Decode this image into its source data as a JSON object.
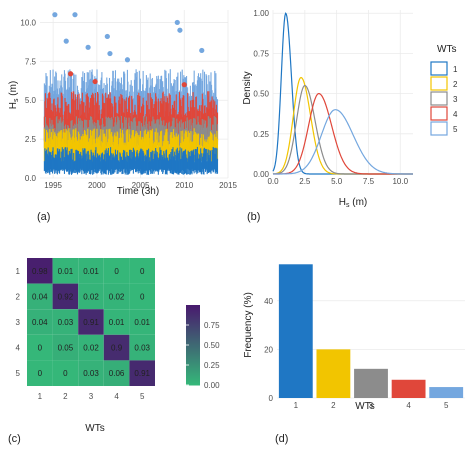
{
  "panel_labels": [
    "(a)",
    "(b)",
    "(c)",
    "(d)"
  ],
  "colors": {
    "1": "#1f77c4",
    "2": "#f2c500",
    "3": "#8c8c8c",
    "4": "#e0473a",
    "5": "#74a7df",
    "grid": "#ebebeb"
  },
  "chart_data": [
    {
      "type": "scatter",
      "panel": "(a)",
      "xlabel": "Time (3h)",
      "ylabel_main": "H",
      "ylabel_sub": "s",
      "ylabel_unit": " (m)",
      "xlim": [
        1993.5,
        2015
      ],
      "ylim": [
        0,
        10.8
      ],
      "x_ticks": [
        1995,
        2000,
        2005,
        2010,
        2015
      ],
      "y_ticks": [
        0.0,
        2.5,
        5.0,
        7.5,
        10.0
      ],
      "y_tick_labels": [
        "0.0",
        "2.5",
        "5.0",
        "7.5",
        "10.0"
      ],
      "series": [
        {
          "wt": "5",
          "band": [
            3.2,
            7.0
          ],
          "outliers": [
            [
              1995.2,
              10.5
            ],
            [
              1997.5,
              10.5
            ],
            [
              2001.2,
              9.1
            ],
            [
              2001.5,
              8.0
            ],
            [
              2009.2,
              10.0
            ],
            [
              2009.5,
              9.5
            ],
            [
              2012.0,
              8.2
            ],
            [
              1999.0,
              8.4
            ],
            [
              2003.5,
              7.6
            ],
            [
              1996.5,
              8.8
            ]
          ]
        },
        {
          "wt": "4",
          "band": [
            2.2,
            5.6
          ],
          "outliers": [
            [
              1997.0,
              6.7
            ],
            [
              1999.8,
              6.2
            ],
            [
              2010.0,
              6.0
            ]
          ]
        },
        {
          "wt": "3",
          "band": [
            1.8,
            4.0
          ],
          "outliers": []
        },
        {
          "wt": "2",
          "band": [
            0.9,
            3.2
          ],
          "outliers": []
        },
        {
          "wt": "1",
          "band": [
            0.2,
            2.0
          ],
          "outliers": []
        }
      ]
    },
    {
      "type": "line",
      "panel": "(b)",
      "xlabel_main": "H",
      "xlabel_sub": "s",
      "xlabel_unit": " (m)",
      "ylabel": "Density",
      "xlim": [
        0,
        11
      ],
      "ylim": [
        0,
        1.02
      ],
      "x_ticks": [
        0.0,
        2.5,
        5.0,
        7.5,
        10.0
      ],
      "x_tick_labels": [
        "0.0",
        "2.5",
        "5.0",
        "7.5",
        "10.0"
      ],
      "y_ticks": [
        0.0,
        0.25,
        0.5,
        0.75,
        1.0
      ],
      "y_tick_labels": [
        "0.00",
        "0.25",
        "0.50",
        "0.75",
        "1.00"
      ],
      "legend_title": "WTs",
      "legend_position": "right",
      "series": [
        {
          "name": "1",
          "peak_x": 1.0,
          "peak_y": 1.0,
          "sd_left": 0.35,
          "sd_right": 0.45
        },
        {
          "name": "2",
          "peak_x": 2.2,
          "peak_y": 0.6,
          "sd_left": 0.6,
          "sd_right": 0.75
        },
        {
          "name": "3",
          "peak_x": 2.5,
          "peak_y": 0.55,
          "sd_left": 0.65,
          "sd_right": 0.8
        },
        {
          "name": "4",
          "peak_x": 3.6,
          "peak_y": 0.5,
          "sd_left": 0.8,
          "sd_right": 1.0
        },
        {
          "name": "5",
          "peak_x": 4.9,
          "peak_y": 0.4,
          "sd_left": 1.1,
          "sd_right": 1.4
        }
      ]
    },
    {
      "type": "heatmap",
      "panel": "(c)",
      "xlabel": "WTs",
      "x_categories": [
        "1",
        "2",
        "3",
        "4",
        "5"
      ],
      "y_categories": [
        "1",
        "2",
        "3",
        "4",
        "5"
      ],
      "values": [
        [
          0.98,
          0.01,
          0.01,
          0,
          0
        ],
        [
          0.04,
          0.92,
          0.02,
          0.02,
          0
        ],
        [
          0.04,
          0.03,
          0.91,
          0.01,
          0.01
        ],
        [
          0,
          0.05,
          0.02,
          0.9,
          0.03
        ],
        [
          0,
          0,
          0.03,
          0.06,
          0.91
        ]
      ],
      "colorbar_ticks": [
        0.0,
        0.25,
        0.5,
        0.75
      ],
      "colorbar_tick_labels": [
        "0.00",
        "0.25",
        "0.50",
        "0.75"
      ],
      "colorbar_range": [
        0,
        1
      ]
    },
    {
      "type": "bar",
      "panel": "(d)",
      "xlabel": "WTs",
      "ylabel": "Frequency (%)",
      "categories": [
        "1",
        "2",
        "3",
        "4",
        "5"
      ],
      "values": [
        55,
        20,
        12,
        7.5,
        4.5
      ],
      "ylim": [
        0,
        58
      ],
      "y_ticks": [
        0,
        20,
        40
      ],
      "y_tick_labels": [
        "0",
        "20",
        "40"
      ]
    }
  ]
}
